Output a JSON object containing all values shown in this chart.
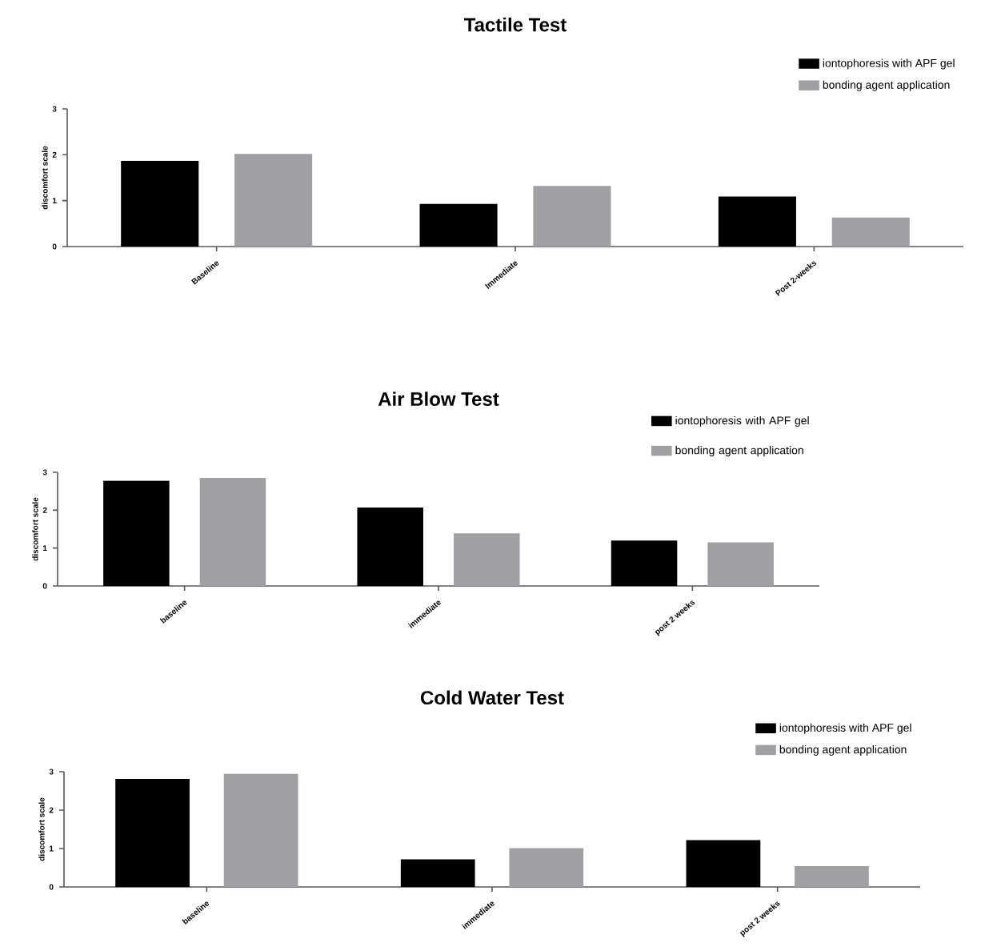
{
  "chart_data": [
    {
      "type": "bar",
      "title": "Tactile Test",
      "ylabel": "discomfort scale",
      "categories": [
        "Baseline",
        "Immediate",
        "Post 2-weeks"
      ],
      "series": [
        {
          "name": "iontophoresis with APF gel",
          "color": "#000000",
          "values": [
            1.87,
            0.93,
            1.09
          ]
        },
        {
          "name": "bonding agent application",
          "color": "#a0a0a4",
          "values": [
            2.02,
            1.32,
            0.63
          ]
        }
      ],
      "ylim": [
        0,
        3
      ],
      "yticks": [
        0,
        1,
        2,
        3
      ],
      "legend": "top right"
    },
    {
      "type": "bar",
      "title": "Air Blow Test",
      "ylabel": "discomfort scale",
      "categories": [
        "baseline",
        "immediate",
        "post 2 weeks"
      ],
      "series": [
        {
          "name": "iontophoresis with APF gel",
          "color": "#000000",
          "values": [
            2.78,
            2.07,
            1.2
          ]
        },
        {
          "name": "bonding agent application",
          "color": "#a0a0a4",
          "values": [
            2.85,
            1.39,
            1.15
          ]
        }
      ],
      "ylim": [
        0,
        3
      ],
      "yticks": [
        0,
        1,
        2,
        3
      ],
      "legend": "top right"
    },
    {
      "type": "bar",
      "title": "Cold Water Test",
      "ylabel": "discomfort scale",
      "categories": [
        "baseline",
        "immediate",
        "post 2 weeks"
      ],
      "series": [
        {
          "name": "iontophoresis with APF gel",
          "color": "#000000",
          "values": [
            2.81,
            0.72,
            1.22
          ]
        },
        {
          "name": "bonding agent application",
          "color": "#a0a0a4",
          "values": [
            2.94,
            1.01,
            0.54
          ]
        }
      ],
      "ylim": [
        0,
        3
      ],
      "yticks": [
        0,
        1,
        2,
        3
      ],
      "legend": "top right"
    }
  ]
}
